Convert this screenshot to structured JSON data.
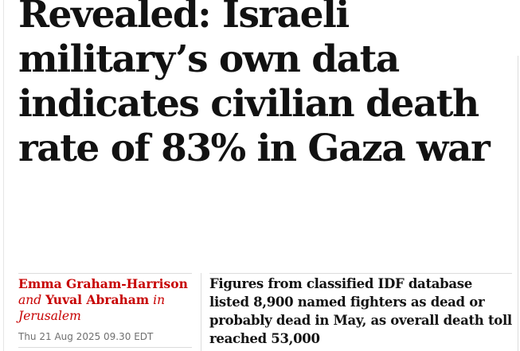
{
  "article": {
    "headline_lines": [
      "Revealed: Israeli",
      "military’s own data",
      "indicates civilian death",
      "rate of 83% in Gaza war"
    ],
    "byline": {
      "author_1": "Emma Graham-Harrison",
      "conjunction": "and",
      "author_2": "Yuval Abraham",
      "location_prefix": "in",
      "location": "Jerusalem"
    },
    "dateline": "Thu 21 Aug 2025 09.30 EDT",
    "standfirst_lines": [
      "Figures from classified IDF database",
      "listed 8,900 named fighters as dead or",
      "probably dead in May, as overall death toll",
      "reached 53,000"
    ]
  },
  "theme": {
    "byline_color": "#c70000",
    "headline_color": "#121212",
    "meta_color": "#707070"
  }
}
